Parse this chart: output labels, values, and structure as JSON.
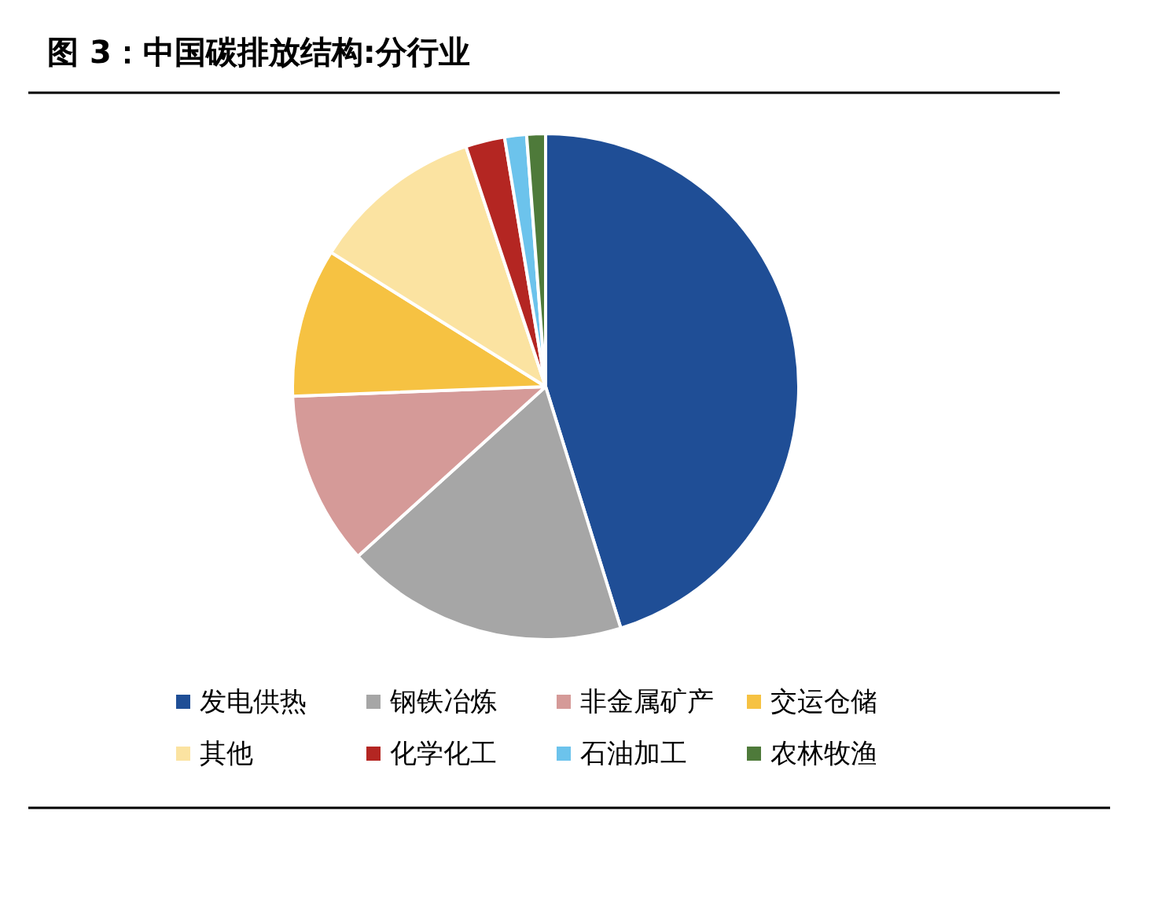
{
  "chart_data": {
    "type": "pie",
    "title": "图 3：中国碳排放结构:分行业",
    "categories": [
      "发电供热",
      "钢铁冶炼",
      "非金属矿产",
      "交运仓储",
      "其他",
      "化学化工",
      "石油加工",
      "农林牧渔"
    ],
    "values": [
      45.2,
      18.1,
      11.1,
      9.5,
      11,
      2.5,
      1.4,
      1.2
    ],
    "colors": [
      "#1f4e96",
      "#a6a6a6",
      "#d59a98",
      "#f6c242",
      "#fbe3a1",
      "#b42622",
      "#6cc3ec",
      "#4e7a3a"
    ],
    "legend": "bottom"
  }
}
